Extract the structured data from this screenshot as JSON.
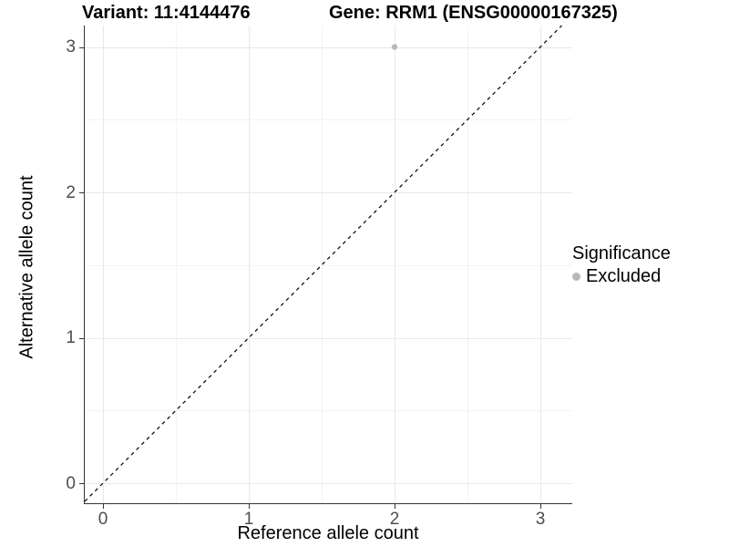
{
  "figure": {
    "title_left": "Variant: 11:4144476",
    "title_right": "Gene: RRM1 (ENSG00000167325)"
  },
  "axes": {
    "x": {
      "label": "Reference allele count",
      "ticks": [
        "0",
        "1",
        "2",
        "3"
      ]
    },
    "y": {
      "label": "Alternative allele count",
      "ticks": [
        "0",
        "1",
        "2",
        "3"
      ]
    }
  },
  "legend": {
    "title": "Significance",
    "items": [
      {
        "label": "Excluded",
        "color": "#b8b8b8"
      }
    ]
  },
  "colors": {
    "point": "#b8b8b8",
    "grid_major": "#e8e8e8",
    "grid_minor": "#f3f3f3",
    "axis_line": "#333333",
    "tick_label": "#4d4d4d",
    "title_text": "#000000"
  },
  "chart_data": {
    "type": "scatter",
    "title": "Variant: 11:4144476  |  Gene: RRM1 (ENSG00000167325)",
    "xlabel": "Reference allele count",
    "ylabel": "Alternative allele count",
    "xlim": [
      -0.13,
      3.22
    ],
    "ylim": [
      -0.14,
      3.15
    ],
    "x_ticks": [
      0,
      1,
      2,
      3
    ],
    "y_ticks": [
      0,
      1,
      2,
      3
    ],
    "grid": true,
    "legend_position": "right",
    "series": [
      {
        "name": "Excluded",
        "color": "#b8b8b8",
        "points": [
          {
            "x": 2,
            "y": 3
          }
        ]
      }
    ],
    "reference_line": {
      "kind": "identity y=x",
      "style": "dashed",
      "color": "#000000"
    }
  }
}
